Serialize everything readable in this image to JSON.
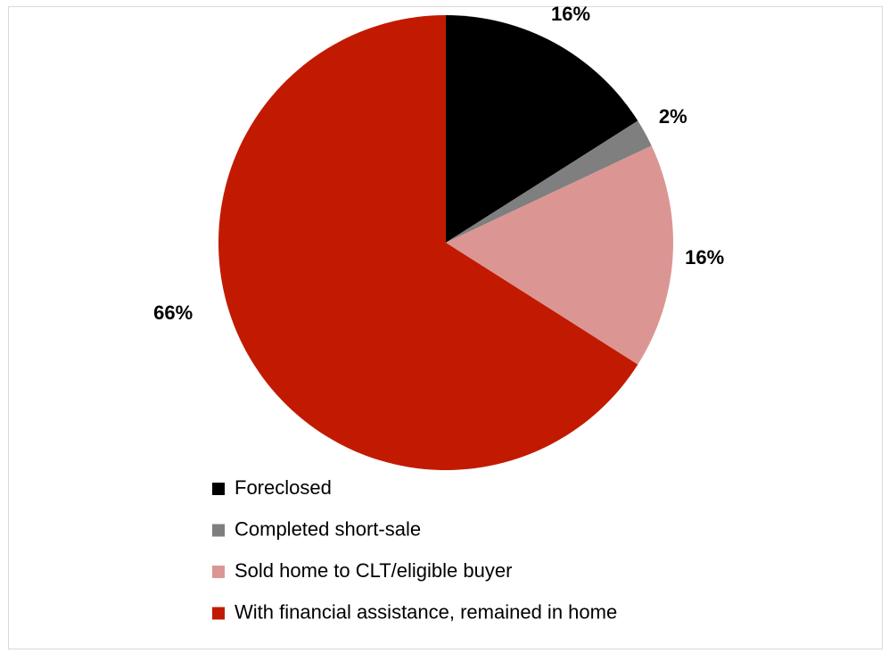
{
  "chart_data": {
    "type": "pie",
    "categories": [
      "Foreclosed",
      "Completed short-sale",
      "Sold home to CLT/eligible buyer",
      "With financial assistance, remained in home"
    ],
    "values": [
      16,
      2,
      16,
      66
    ],
    "value_labels": [
      "16%",
      "2%",
      "16%",
      "66%"
    ],
    "colors": [
      "#000000",
      "#7f7f7f",
      "#db9693",
      "#c21a00"
    ],
    "legend": "bottom"
  }
}
